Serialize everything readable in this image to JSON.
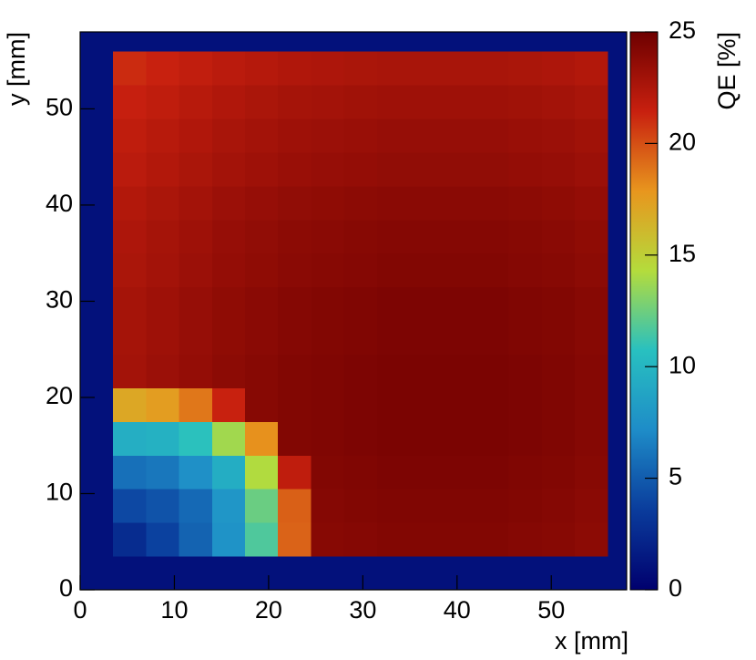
{
  "chart_data": {
    "type": "heatmap",
    "xlabel": "x [mm]",
    "ylabel": "y [mm]",
    "zlabel": "QE [%]",
    "xlim": [
      0,
      58
    ],
    "ylim": [
      0,
      58
    ],
    "zlim": [
      0,
      25
    ],
    "xticks": [
      0,
      10,
      20,
      30,
      40,
      50
    ],
    "yticks": [
      0,
      10,
      20,
      30,
      40,
      50
    ],
    "zticks": [
      0,
      5,
      10,
      15,
      20,
      25
    ],
    "colorscale": [
      "#00006e",
      "#0a3c9c",
      "#1e8cc8",
      "#28c0c0",
      "#b4dc3c",
      "#e8961e",
      "#c8200f",
      "#6e0000"
    ],
    "xbins": [
      0,
      3.5,
      7,
      10.5,
      14,
      17.5,
      21,
      24.5,
      28,
      31.5,
      35,
      38.5,
      42,
      45.5,
      49,
      52.5,
      56,
      58
    ],
    "ybins": [
      0,
      3.5,
      7,
      10.5,
      14,
      17.5,
      21,
      24.5,
      28,
      31.5,
      35,
      38.5,
      42,
      45.5,
      49,
      52.5,
      56,
      58
    ],
    "z": [
      [
        1.0,
        1.0,
        1.0,
        1.0,
        1.0,
        1.0,
        1.0,
        1.0,
        1.0,
        1.0,
        1.0,
        1.0,
        1.0,
        1.0,
        1.0,
        1.0,
        1.0
      ],
      [
        1.0,
        2.6,
        3.8,
        5.3,
        7.6,
        11.7,
        19.4,
        24.0,
        24.1,
        24.2,
        24.2,
        24.2,
        24.2,
        24.1,
        24.0,
        23.8,
        1.0
      ],
      [
        1.0,
        4.1,
        4.6,
        5.6,
        7.8,
        12.4,
        19.5,
        24.1,
        24.2,
        24.3,
        24.3,
        24.3,
        24.3,
        24.2,
        24.1,
        23.9,
        1.0
      ],
      [
        1.0,
        5.9,
        6.2,
        7.4,
        9.4,
        14.2,
        21.8,
        24.2,
        24.3,
        24.4,
        24.4,
        24.4,
        24.4,
        24.3,
        24.2,
        24.0,
        1.0
      ],
      [
        1.0,
        9.5,
        9.7,
        10.8,
        13.8,
        18.0,
        24.2,
        24.3,
        24.4,
        24.5,
        24.5,
        24.5,
        24.5,
        24.4,
        24.3,
        24.1,
        1.0
      ],
      [
        1.0,
        17.0,
        17.5,
        18.8,
        21.4,
        24.0,
        24.2,
        24.3,
        24.4,
        24.5,
        24.5,
        24.5,
        24.5,
        24.4,
        24.3,
        24.1,
        1.0
      ],
      [
        1.0,
        22.9,
        23.2,
        23.5,
        23.8,
        24.0,
        24.2,
        24.3,
        24.4,
        24.5,
        24.5,
        24.5,
        24.5,
        24.4,
        24.3,
        24.1,
        1.0
      ],
      [
        1.0,
        22.8,
        23.1,
        23.4,
        23.7,
        23.9,
        24.1,
        24.2,
        24.3,
        24.4,
        24.4,
        24.4,
        24.4,
        24.3,
        24.2,
        24.0,
        1.0
      ],
      [
        1.0,
        22.8,
        23.1,
        23.4,
        23.7,
        23.9,
        24.1,
        24.2,
        24.3,
        24.4,
        24.4,
        24.4,
        24.4,
        24.3,
        24.2,
        24.0,
        1.0
      ],
      [
        1.0,
        22.6,
        22.9,
        23.2,
        23.5,
        23.7,
        23.9,
        24.0,
        24.1,
        24.2,
        24.2,
        24.2,
        24.2,
        24.1,
        24.0,
        23.8,
        1.0
      ],
      [
        1.0,
        22.5,
        22.8,
        23.1,
        23.4,
        23.6,
        23.8,
        23.9,
        24.0,
        24.1,
        24.1,
        24.1,
        24.1,
        24.0,
        23.9,
        23.7,
        1.0
      ],
      [
        1.0,
        22.3,
        22.6,
        22.9,
        23.2,
        23.4,
        23.6,
        23.7,
        23.8,
        23.9,
        23.9,
        23.9,
        23.9,
        23.8,
        23.7,
        23.5,
        1.0
      ],
      [
        1.0,
        22.0,
        22.3,
        22.6,
        22.9,
        23.1,
        23.3,
        23.4,
        23.5,
        23.6,
        23.6,
        23.6,
        23.6,
        23.5,
        23.4,
        23.2,
        1.0
      ],
      [
        1.0,
        21.8,
        22.1,
        22.4,
        22.7,
        22.9,
        23.1,
        23.2,
        23.3,
        23.4,
        23.4,
        23.4,
        23.4,
        23.3,
        23.2,
        23.0,
        1.0
      ],
      [
        1.0,
        21.5,
        21.8,
        22.1,
        22.4,
        22.6,
        22.8,
        22.9,
        23.0,
        23.1,
        23.1,
        23.1,
        23.1,
        23.0,
        22.9,
        22.7,
        1.0
      ],
      [
        1.0,
        21.1,
        21.4,
        21.7,
        22.0,
        22.2,
        22.4,
        22.5,
        22.6,
        22.7,
        22.7,
        22.7,
        22.7,
        22.6,
        22.5,
        22.3,
        1.0
      ],
      [
        1.0,
        1.0,
        1.0,
        1.0,
        1.0,
        1.0,
        1.0,
        1.0,
        1.0,
        1.0,
        1.0,
        1.0,
        1.0,
        1.0,
        1.0,
        1.0,
        1.0
      ]
    ]
  }
}
